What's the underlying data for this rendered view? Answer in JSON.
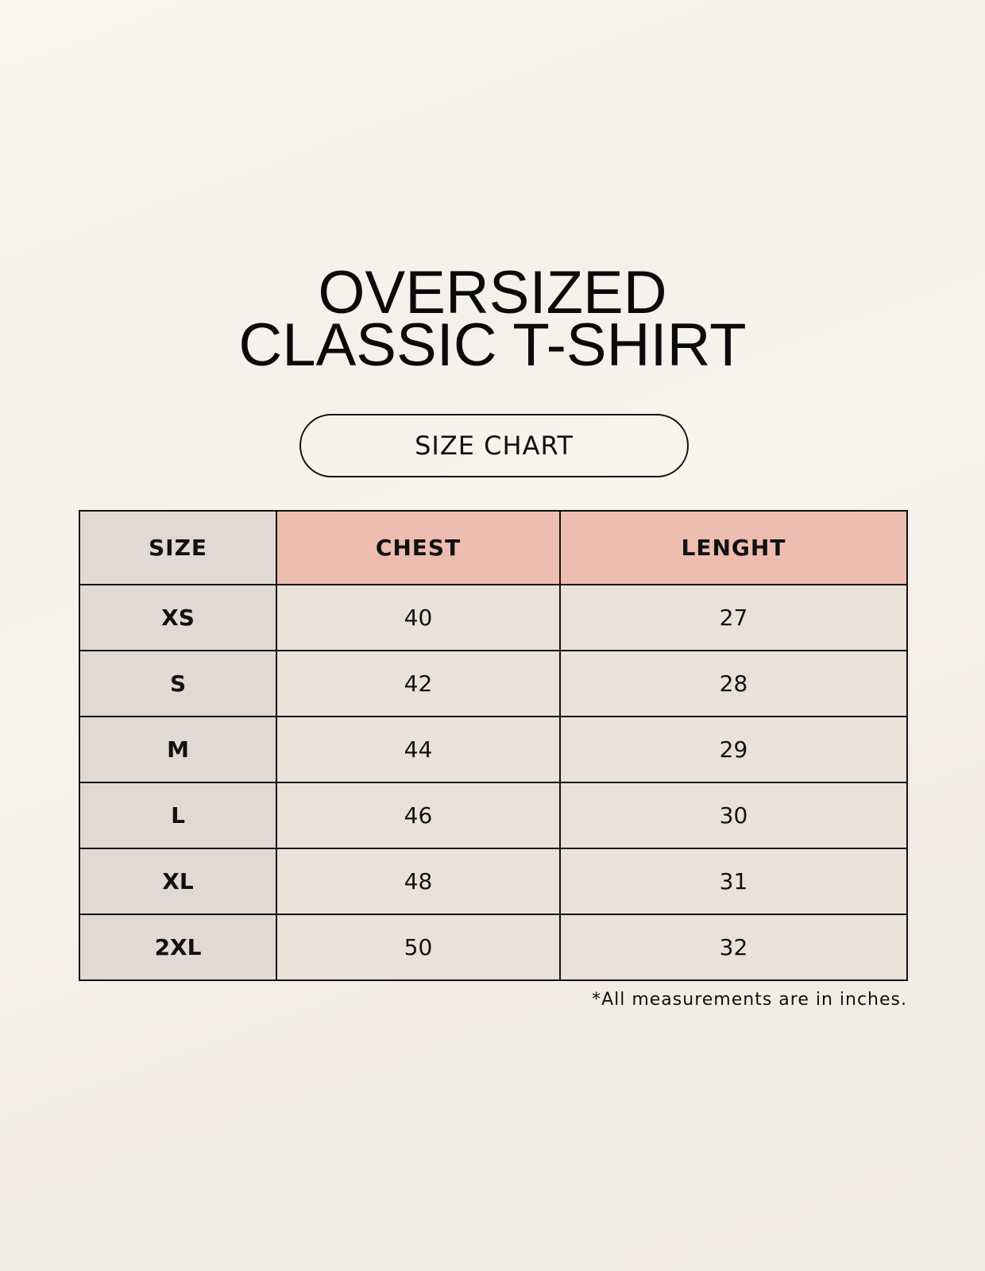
{
  "title": {
    "line1": "OVERSIZED",
    "line2": "CLASSIC T-SHIRT"
  },
  "badge": "SIZE CHART",
  "table": {
    "headers": [
      "SIZE",
      "CHEST",
      "LENGHT"
    ],
    "rows": [
      [
        "XS",
        "40",
        "27"
      ],
      [
        "S",
        "42",
        "28"
      ],
      [
        "M",
        "44",
        "29"
      ],
      [
        "L",
        "46",
        "30"
      ],
      [
        "XL",
        "48",
        "31"
      ],
      [
        "2XL",
        "50",
        "32"
      ]
    ]
  },
  "footnote": "*All measurements are in inches.",
  "colors": {
    "size_column": "#e0d9d4",
    "header_accent": "#edbdb0",
    "value_cells": "#e9e2d8"
  }
}
